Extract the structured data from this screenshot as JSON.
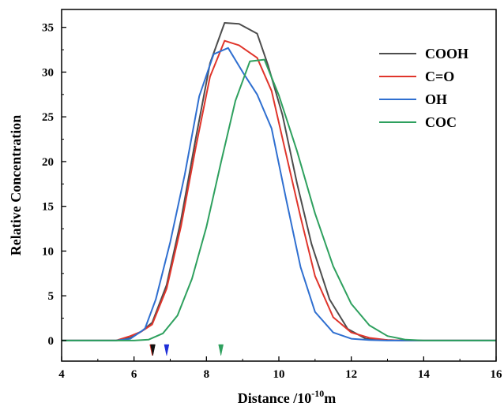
{
  "chart_data": {
    "type": "line",
    "xlabel": "Distance /10",
    "xlabel_exponent": "-10",
    "xlabel_unit": "m",
    "ylabel": "Relative Concentration",
    "xlim": [
      4,
      16
    ],
    "ylim": [
      -2.3,
      37
    ],
    "xticks": [
      4,
      6,
      8,
      10,
      12,
      14,
      16
    ],
    "yticks": [
      0,
      5,
      10,
      15,
      20,
      25,
      30,
      35
    ],
    "grid": false,
    "legend_position": "top-right",
    "series": [
      {
        "name": "COOH",
        "color": "#4d4d4d",
        "x": [
          4.0,
          4.5,
          5.0,
          5.5,
          5.9,
          6.2,
          6.5,
          6.9,
          7.3,
          7.7,
          8.1,
          8.5,
          8.9,
          9.4,
          9.7,
          10.1,
          10.5,
          10.9,
          11.4,
          11.9,
          12.4,
          13.0,
          13.5,
          14.0,
          16.0
        ],
        "y": [
          0,
          0,
          0,
          0,
          0.3,
          1.0,
          2.0,
          6.2,
          13.5,
          22.5,
          31.0,
          35.5,
          35.4,
          34.3,
          30.8,
          25.2,
          17.6,
          10.8,
          4.6,
          1.3,
          0.2,
          0.05,
          0,
          0,
          0
        ]
      },
      {
        "name": "C=O",
        "color": "#e0352b",
        "x": [
          4.0,
          4.5,
          5.0,
          5.5,
          5.9,
          6.2,
          6.5,
          6.9,
          7.3,
          7.7,
          8.1,
          8.5,
          8.9,
          9.4,
          9.8,
          10.2,
          10.6,
          11.0,
          11.5,
          12.0,
          12.5,
          13.0,
          13.5,
          14.0,
          16.0
        ],
        "y": [
          0,
          0,
          0,
          0,
          0.5,
          1.0,
          1.8,
          5.8,
          12.8,
          21.5,
          29.5,
          33.5,
          33.0,
          31.6,
          27.9,
          20.8,
          13.8,
          7.2,
          2.6,
          0.9,
          0.3,
          0.05,
          0,
          0,
          0
        ]
      },
      {
        "name": "OH",
        "color": "#2f6fd0",
        "x": [
          4.0,
          4.5,
          5.0,
          5.5,
          5.9,
          6.3,
          6.6,
          7.0,
          7.4,
          7.8,
          8.2,
          8.6,
          9.0,
          9.4,
          9.8,
          10.2,
          10.6,
          11.0,
          11.5,
          12.0,
          12.5,
          13.0,
          13.5,
          14.0,
          16.0
        ],
        "y": [
          0,
          0,
          0,
          0,
          0.2,
          1.3,
          4.6,
          11.0,
          18.5,
          27.3,
          32.0,
          32.7,
          30.0,
          27.5,
          23.7,
          15.8,
          8.2,
          3.2,
          0.9,
          0.2,
          0.05,
          0,
          0,
          0,
          0
        ]
      },
      {
        "name": "COC",
        "color": "#2ea05e",
        "x": [
          4.0,
          4.5,
          5.0,
          5.5,
          6.0,
          6.4,
          6.8,
          7.2,
          7.6,
          8.0,
          8.4,
          8.8,
          9.2,
          9.6,
          10.0,
          10.5,
          11.0,
          11.5,
          12.0,
          12.5,
          13.0,
          13.5,
          14.0,
          14.5,
          16.0
        ],
        "y": [
          0,
          0,
          0,
          0,
          0,
          0.1,
          0.8,
          2.8,
          6.9,
          12.7,
          19.9,
          26.8,
          31.2,
          31.4,
          27.4,
          21.2,
          14.2,
          8.3,
          4.1,
          1.7,
          0.5,
          0.1,
          0,
          0,
          0
        ]
      }
    ],
    "markers": [
      {
        "x": 6.5,
        "color": "#e0352b"
      },
      {
        "x": 6.52,
        "color": "#111111"
      },
      {
        "x": 6.9,
        "color": "#1f2fd8"
      },
      {
        "x": 8.4,
        "color": "#2ea05e"
      }
    ]
  }
}
